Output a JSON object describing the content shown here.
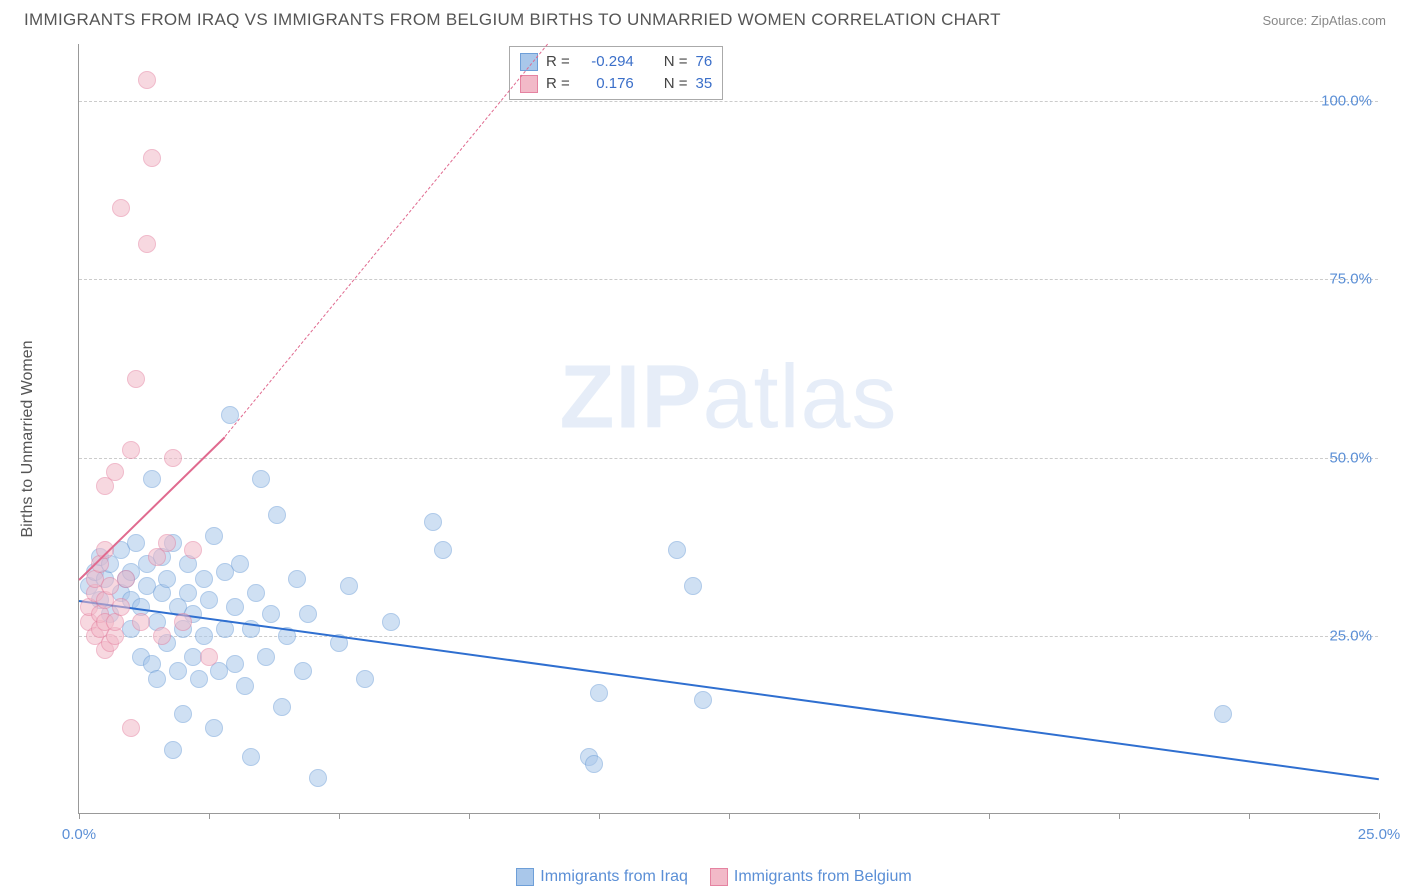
{
  "header": {
    "title": "IMMIGRANTS FROM IRAQ VS IMMIGRANTS FROM BELGIUM BIRTHS TO UNMARRIED WOMEN CORRELATION CHART",
    "source": "Source: ZipAtlas.com"
  },
  "chart": {
    "type": "scatter",
    "y_axis_title": "Births to Unmarried Women",
    "background_color": "#ffffff",
    "grid_color": "#cccccc",
    "axis_color": "#999999",
    "xlim": [
      0,
      25
    ],
    "ylim": [
      0,
      108
    ],
    "x_ticks": [
      0,
      2.5,
      5,
      7.5,
      10,
      12.5,
      15,
      17.5,
      20,
      22.5,
      25
    ],
    "x_tick_labels": {
      "0": "0.0%",
      "25": "25.0%"
    },
    "y_gridlines": [
      25,
      50,
      75,
      100
    ],
    "y_tick_labels": {
      "25": "25.0%",
      "50": "50.0%",
      "75": "75.0%",
      "100": "100.0%"
    },
    "label_color": "#5b8fd6",
    "label_fontsize": 15,
    "point_radius": 9,
    "point_opacity": 0.55,
    "watermark": {
      "bold": "ZIP",
      "rest": "atlas"
    },
    "series": [
      {
        "name": "Immigrants from Iraq",
        "fill_color": "#a9c7ea",
        "stroke_color": "#6e9fd8",
        "trend_color": "#2f6fd0",
        "trend": {
          "x1": 0,
          "y1": 30,
          "x2": 25,
          "y2": 5,
          "dash_extend": false
        },
        "R": "-0.294",
        "N": "76",
        "points": [
          [
            0.2,
            32
          ],
          [
            0.3,
            34
          ],
          [
            0.4,
            30
          ],
          [
            0.4,
            36
          ],
          [
            0.5,
            33
          ],
          [
            0.6,
            28
          ],
          [
            0.6,
            35
          ],
          [
            0.8,
            31
          ],
          [
            0.8,
            37
          ],
          [
            0.9,
            33
          ],
          [
            1.0,
            26
          ],
          [
            1.0,
            30
          ],
          [
            1.0,
            34
          ],
          [
            1.1,
            38
          ],
          [
            1.2,
            29
          ],
          [
            1.2,
            22
          ],
          [
            1.3,
            32
          ],
          [
            1.3,
            35
          ],
          [
            1.4,
            21
          ],
          [
            1.4,
            47
          ],
          [
            1.5,
            19
          ],
          [
            1.5,
            27
          ],
          [
            1.6,
            31
          ],
          [
            1.6,
            36
          ],
          [
            1.7,
            24
          ],
          [
            1.7,
            33
          ],
          [
            1.8,
            38
          ],
          [
            1.8,
            9
          ],
          [
            1.9,
            20
          ],
          [
            1.9,
            29
          ],
          [
            2.0,
            14
          ],
          [
            2.0,
            26
          ],
          [
            2.1,
            31
          ],
          [
            2.1,
            35
          ],
          [
            2.2,
            22
          ],
          [
            2.2,
            28
          ],
          [
            2.3,
            19
          ],
          [
            2.4,
            25
          ],
          [
            2.4,
            33
          ],
          [
            2.5,
            30
          ],
          [
            2.6,
            39
          ],
          [
            2.6,
            12
          ],
          [
            2.7,
            20
          ],
          [
            2.8,
            26
          ],
          [
            2.8,
            34
          ],
          [
            2.9,
            56
          ],
          [
            3.0,
            21
          ],
          [
            3.0,
            29
          ],
          [
            3.1,
            35
          ],
          [
            3.2,
            18
          ],
          [
            3.3,
            26
          ],
          [
            3.3,
            8
          ],
          [
            3.4,
            31
          ],
          [
            3.5,
            47
          ],
          [
            3.6,
            22
          ],
          [
            3.7,
            28
          ],
          [
            3.8,
            42
          ],
          [
            3.9,
            15
          ],
          [
            4.0,
            25
          ],
          [
            4.2,
            33
          ],
          [
            4.3,
            20
          ],
          [
            4.4,
            28
          ],
          [
            4.6,
            5
          ],
          [
            5.0,
            24
          ],
          [
            5.2,
            32
          ],
          [
            5.5,
            19
          ],
          [
            6.0,
            27
          ],
          [
            6.8,
            41
          ],
          [
            7.0,
            37
          ],
          [
            9.8,
            8
          ],
          [
            9.9,
            7
          ],
          [
            10.0,
            17
          ],
          [
            11.5,
            37
          ],
          [
            11.8,
            32
          ],
          [
            12.0,
            16
          ],
          [
            22.0,
            14
          ]
        ]
      },
      {
        "name": "Immigrants from Belgium",
        "fill_color": "#f2b9c8",
        "stroke_color": "#e583a1",
        "trend_color": "#e06a8f",
        "trend": {
          "x1": 0,
          "y1": 33,
          "x2": 2.8,
          "y2": 53,
          "dash_extend": true,
          "dash_x2": 9,
          "dash_y2": 108
        },
        "R": "0.176",
        "N": "35",
        "points": [
          [
            0.2,
            27
          ],
          [
            0.2,
            29
          ],
          [
            0.3,
            25
          ],
          [
            0.3,
            31
          ],
          [
            0.3,
            33
          ],
          [
            0.4,
            26
          ],
          [
            0.4,
            28
          ],
          [
            0.4,
            35
          ],
          [
            0.5,
            23
          ],
          [
            0.5,
            27
          ],
          [
            0.5,
            30
          ],
          [
            0.5,
            37
          ],
          [
            0.5,
            46
          ],
          [
            0.6,
            24
          ],
          [
            0.6,
            32
          ],
          [
            0.7,
            25
          ],
          [
            0.7,
            27
          ],
          [
            0.7,
            48
          ],
          [
            0.8,
            29
          ],
          [
            0.8,
            85
          ],
          [
            0.9,
            33
          ],
          [
            1.0,
            51
          ],
          [
            1.0,
            12
          ],
          [
            1.1,
            61
          ],
          [
            1.2,
            27
          ],
          [
            1.3,
            80
          ],
          [
            1.3,
            103
          ],
          [
            1.4,
            92
          ],
          [
            1.5,
            36
          ],
          [
            1.6,
            25
          ],
          [
            1.7,
            38
          ],
          [
            1.8,
            50
          ],
          [
            2.0,
            27
          ],
          [
            2.2,
            37
          ],
          [
            2.5,
            22
          ]
        ]
      }
    ],
    "bottom_legend": [
      {
        "label": "Immigrants from Iraq",
        "fill": "#a9c7ea",
        "stroke": "#6e9fd8"
      },
      {
        "label": "Immigrants from Belgium",
        "fill": "#f2b9c8",
        "stroke": "#e583a1"
      }
    ]
  }
}
